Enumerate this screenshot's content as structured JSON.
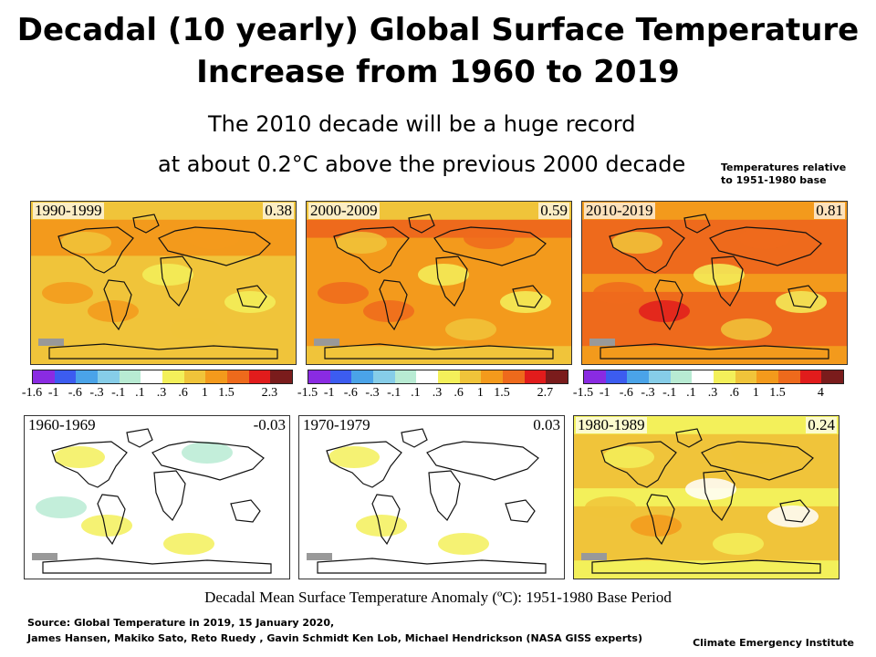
{
  "header": {
    "title_line1": "Decadal (10 yearly) Global Surface Temperature",
    "title_line2": "Increase from 1960 to 2019",
    "subtitle_line1": "The 2010 decade will be a huge record",
    "subtitle_line2": "at about 0.2°C above the previous 2000 decade",
    "note_line1": "Temperatures relative",
    "note_line2": "to 1951-1980  base"
  },
  "colors": {
    "palette": [
      "#8a2be2",
      "#3c5cf0",
      "#4aa3e8",
      "#86cde8",
      "#b8ebd3",
      "#ffffff",
      "#f3f05a",
      "#f0c43a",
      "#f39a1c",
      "#ee6a1c",
      "#e11c1c",
      "#7a1c1c"
    ],
    "land_line": "#111111",
    "missing": "#999999"
  },
  "panels": [
    {
      "period": "1990-1999",
      "value": "0.38",
      "mean": 0.38
    },
    {
      "period": "2000-2009",
      "value": "0.59",
      "mean": 0.59
    },
    {
      "period": "2010-2019",
      "value": "0.81",
      "mean": 0.81
    },
    {
      "period": "1960-1969",
      "value": "-0.03",
      "mean": -0.03
    },
    {
      "period": "1970-1979",
      "value": "0.03",
      "mean": 0.03
    },
    {
      "period": "1980-1989",
      "value": "0.24",
      "mean": 0.24
    }
  ],
  "colorbars": [
    {
      "ticks": [
        "-1.6",
        "-1",
        "-.6",
        "-.3",
        "-.1",
        ".1",
        ".3",
        ".6",
        "1",
        "1.5",
        "2.3"
      ]
    },
    {
      "ticks": [
        "-1.5",
        "-1",
        "-.6",
        "-.3",
        "-.1",
        ".1",
        ".3",
        ".6",
        "1",
        "1.5",
        "2.7"
      ]
    },
    {
      "ticks": [
        "-1.5",
        "-1",
        "-.6",
        "-.3",
        "-.1",
        ".1",
        ".3",
        ".6",
        "1",
        "1.5",
        "4"
      ]
    }
  ],
  "caption": "Decadal Mean Surface Temperature Anomaly (ºC): 1951-1980 Base Period",
  "source_line1": "Source: Global Temperature in 2019, 15 January 2020,",
  "source_line2": "James Hansen, Makiko Sato, Reto Ruedy , Gavin Schmidt Ken Lob, Michael Hendrickson (NASA GISS experts)",
  "institute": "Climate Emergency Institute"
}
